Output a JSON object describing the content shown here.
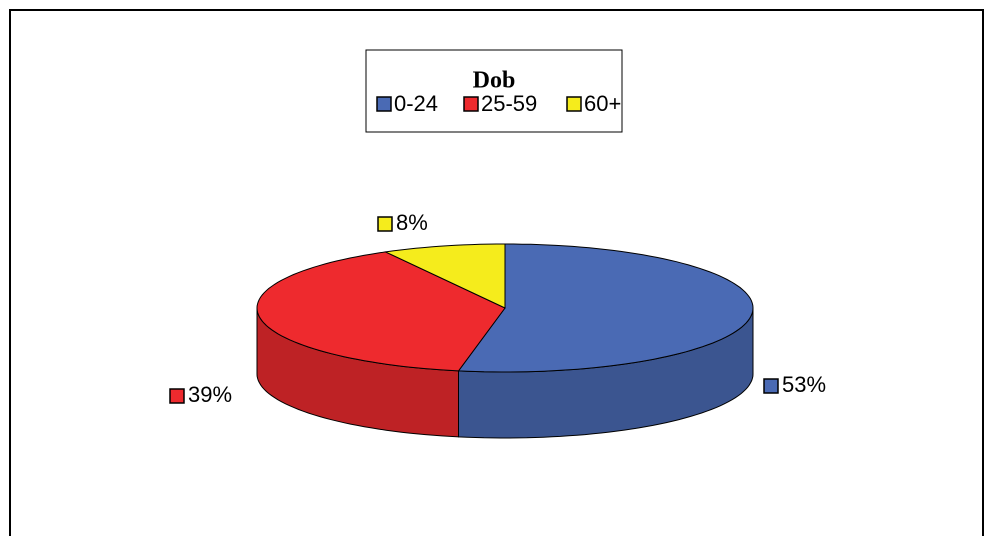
{
  "chart_data": {
    "type": "pie",
    "title": "Dob",
    "categories": [
      "0-24",
      "25-59",
      "60+"
    ],
    "values": [
      53,
      39,
      8
    ],
    "value_labels": [
      "53%",
      "39%",
      "8%"
    ],
    "colors": [
      "#4a6ab4",
      "#ee2a2e",
      "#f5ec1c"
    ]
  }
}
